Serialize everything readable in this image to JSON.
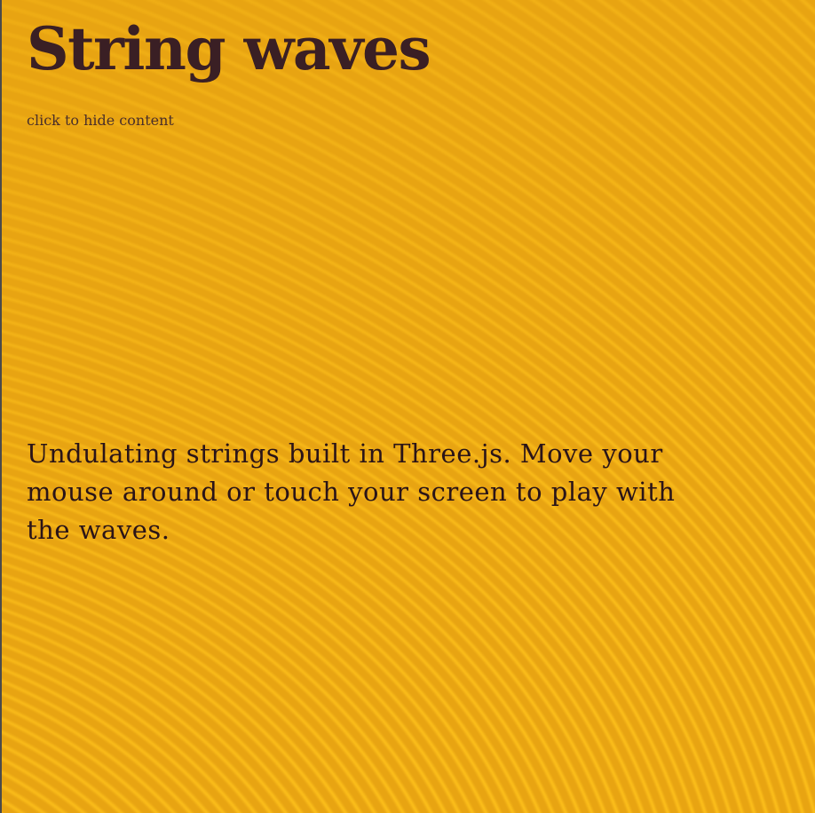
{
  "page": {
    "title": "String waves",
    "toggle_label": "click to hide content",
    "description": "Undulating strings built in Three.js. Move your mouse around or touch your screen to play with the waves."
  },
  "colors": {
    "background": "#e8a412",
    "stripe_light": "#fbbd1a",
    "title_text": "#3a1f24",
    "body_text": "#2a1418"
  },
  "icons": []
}
